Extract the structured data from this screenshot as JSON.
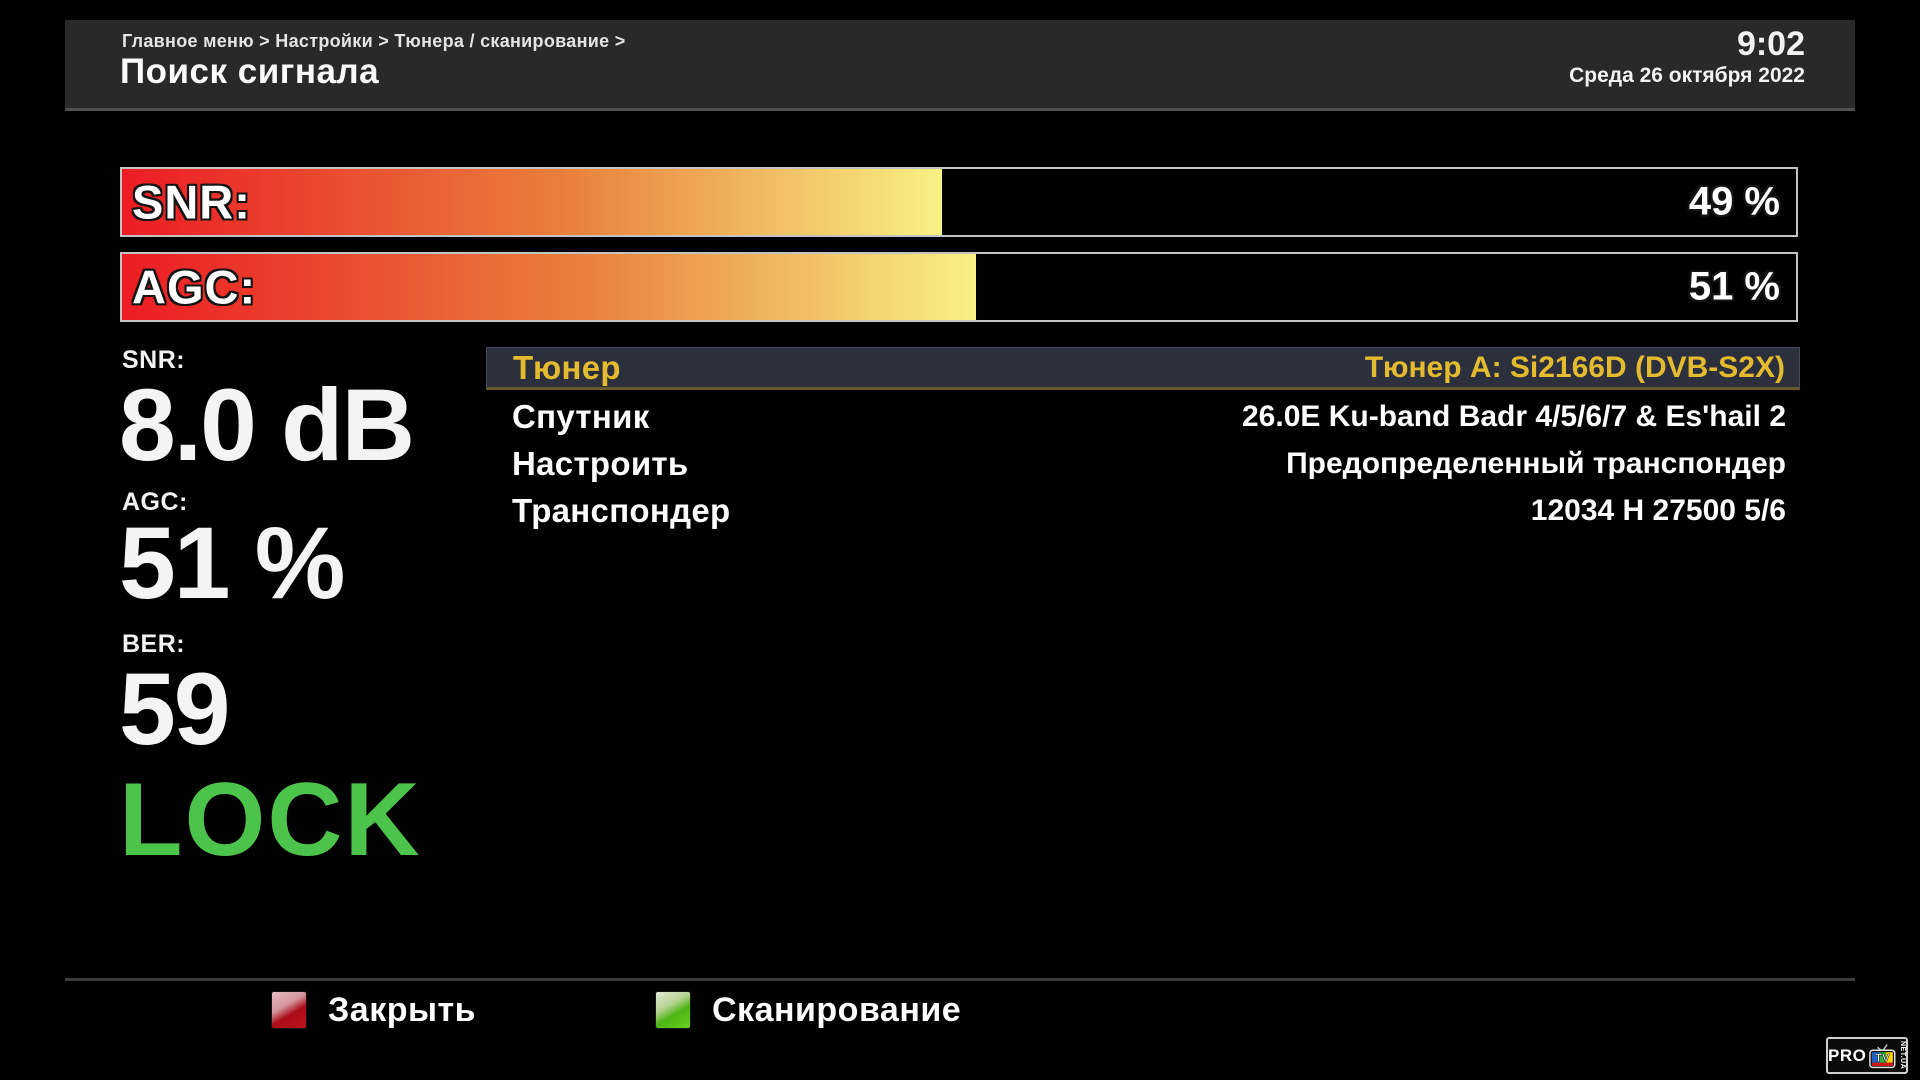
{
  "header": {
    "breadcrumb": "Главное меню > Настройки > Тюнера / сканирование >",
    "title": "Поиск сигнала",
    "time": "9:02",
    "date": "Среда 26 октября 2022"
  },
  "signal_bars": [
    {
      "label": "SNR:",
      "percent": 49,
      "value_text": "49 %"
    },
    {
      "label": "AGC:",
      "percent": 51,
      "value_text": "51 %"
    }
  ],
  "readouts": {
    "snr": {
      "label": "SNR:",
      "value": "8.0 dB"
    },
    "agc": {
      "label": "AGC:",
      "value": "51 %"
    },
    "ber": {
      "label": "BER:",
      "value": "59"
    }
  },
  "lock_status": "LOCK",
  "menu": {
    "items": [
      {
        "label": "Тюнер",
        "value": "Тюнер A: Si2166D (DVB-S2X)",
        "selected": true
      },
      {
        "label": "Спутник",
        "value": "26.0E Ku-band Badr 4/5/6/7 & Es'hail 2",
        "selected": false
      },
      {
        "label": "Настроить",
        "value": "Предопределенный транспондер",
        "selected": false
      },
      {
        "label": "Транспондер",
        "value": "12034 H 27500 5/6",
        "selected": false
      }
    ]
  },
  "footer": {
    "buttons": [
      {
        "key": "red",
        "label": "Закрыть"
      },
      {
        "key": "green",
        "label": "Сканирование"
      }
    ]
  },
  "logo": {
    "pro": "PRO",
    "tv": "TV",
    "netua": "NET.UA"
  },
  "colors": {
    "accent_gold": "#e4bb2e",
    "lock_green": "#4cc44c",
    "bar_gradient": [
      "#ec1c24",
      "#e9813d",
      "#f8f183"
    ],
    "key_red": "#c01320",
    "key_green": "#55c417",
    "header_bg": "#292929",
    "selected_row_bg": "#2c2f3c"
  }
}
